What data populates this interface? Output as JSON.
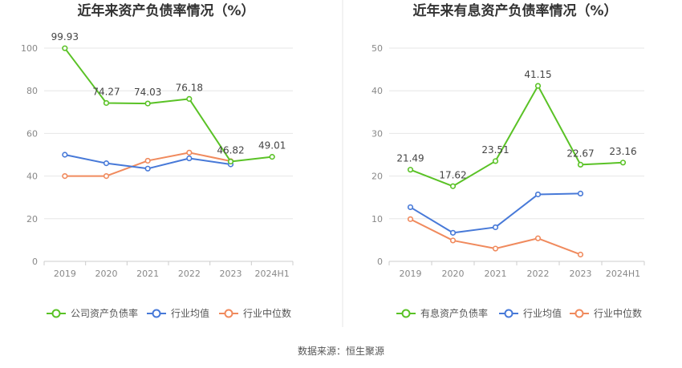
{
  "source": "数据来源：恒生聚源",
  "chart_data": [
    {
      "type": "line",
      "title": "近年来资产负债率情况（%）",
      "categories": [
        "2019",
        "2020",
        "2021",
        "2022",
        "2023",
        "2024H1"
      ],
      "ylim": [
        0,
        100
      ],
      "yticks": [
        0,
        20,
        40,
        60,
        80,
        100
      ],
      "grid": true,
      "legend_position": "bottom",
      "series": [
        {
          "name": "公司资产负债率",
          "color": "#5ac226",
          "labels": true,
          "values": [
            99.93,
            74.27,
            74.03,
            76.18,
            46.82,
            49.01
          ]
        },
        {
          "name": "行业均值",
          "color": "#4779d8",
          "labels": false,
          "values": [
            50.0,
            46.0,
            43.5,
            48.3,
            45.5,
            null
          ]
        },
        {
          "name": "行业中位数",
          "color": "#f08a5d",
          "labels": false,
          "values": [
            40.0,
            40.0,
            47.2,
            51.0,
            47.0,
            null
          ]
        }
      ]
    },
    {
      "type": "line",
      "title": "近年来有息资产负债率情况（%）",
      "categories": [
        "2019",
        "2020",
        "2021",
        "2022",
        "2023",
        "2024H1"
      ],
      "ylim": [
        0,
        50
      ],
      "yticks": [
        0,
        10,
        20,
        30,
        40,
        50
      ],
      "grid": true,
      "legend_position": "bottom",
      "series": [
        {
          "name": "有息资产负债率",
          "color": "#5ac226",
          "labels": true,
          "values": [
            21.49,
            17.62,
            23.51,
            41.15,
            22.67,
            23.16
          ]
        },
        {
          "name": "行业均值",
          "color": "#4779d8",
          "labels": false,
          "values": [
            12.7,
            6.7,
            8.0,
            15.7,
            15.9,
            null
          ]
        },
        {
          "name": "行业中位数",
          "color": "#f08a5d",
          "labels": false,
          "values": [
            9.9,
            4.9,
            3.0,
            5.4,
            1.6,
            null
          ]
        }
      ]
    }
  ]
}
